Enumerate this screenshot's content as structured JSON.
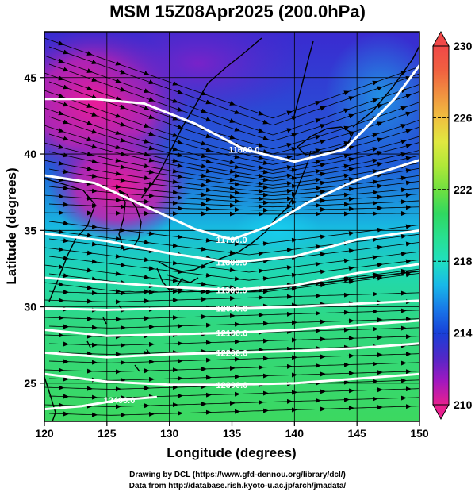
{
  "title": "MSM 15Z08Apr2025 (200.0hPa)",
  "map": {
    "xlabel": "Longitude (degrees)",
    "ylabel": "Latitude  (degrees)",
    "x_ticks": [
      "120",
      "125",
      "130",
      "135",
      "140",
      "145",
      "150"
    ],
    "y_ticks": [
      "25",
      "30",
      "35",
      "40",
      "45"
    ],
    "xlim": [
      120,
      150
    ],
    "ylim": [
      22.5,
      48
    ]
  },
  "colorbar": {
    "ticks": [
      "210",
      "214",
      "218",
      "222",
      "226",
      "230"
    ],
    "range": [
      210,
      230
    ],
    "colors": [
      "#e8208f",
      "#a018c0",
      "#5028c8",
      "#1840d8",
      "#1878e8",
      "#18b8e8",
      "#20e0c0",
      "#28e090",
      "#30d860",
      "#70e040",
      "#b0e838",
      "#e0e840",
      "#f0c040",
      "#f09040",
      "#f06040",
      "#f04848"
    ]
  },
  "contours": [
    {
      "label": "11600.0",
      "points": [
        [
          120,
          43.6
        ],
        [
          124,
          43.6
        ],
        [
          128,
          43.3
        ],
        [
          132,
          42.0
        ],
        [
          136,
          40.3
        ],
        [
          140,
          39.5
        ],
        [
          144,
          40.3
        ],
        [
          148,
          43.6
        ],
        [
          150,
          45.8
        ]
      ]
    },
    {
      "label": "11700.0",
      "points": [
        [
          120,
          38.6
        ],
        [
          124,
          38.1
        ],
        [
          128,
          36.6
        ],
        [
          132,
          35.1
        ],
        [
          135,
          34.4
        ],
        [
          138,
          35.3
        ],
        [
          141,
          36.8
        ],
        [
          145,
          38.3
        ],
        [
          150,
          39.6
        ]
      ]
    },
    {
      "label": "11800.0",
      "points": [
        [
          120,
          34.8
        ],
        [
          125,
          34.3
        ],
        [
          130,
          33.5
        ],
        [
          135,
          32.9
        ],
        [
          140,
          33.3
        ],
        [
          145,
          34.4
        ],
        [
          150,
          35.0
        ]
      ]
    },
    {
      "label": "11900.0",
      "points": [
        [
          120,
          31.9
        ],
        [
          125,
          31.6
        ],
        [
          130,
          31.3
        ],
        [
          135,
          31.1
        ],
        [
          140,
          31.4
        ],
        [
          145,
          32.2
        ],
        [
          150,
          32.8
        ]
      ]
    },
    {
      "label": "12000.0",
      "points": [
        [
          120,
          29.9
        ],
        [
          125,
          29.8
        ],
        [
          130,
          29.9
        ],
        [
          135,
          29.9
        ],
        [
          140,
          30.0
        ],
        [
          145,
          30.2
        ],
        [
          150,
          30.4
        ]
      ]
    },
    {
      "label": "12100.0",
      "points": [
        [
          120,
          28.5
        ],
        [
          125,
          28.1
        ],
        [
          130,
          28.2
        ],
        [
          135,
          28.3
        ],
        [
          140,
          28.5
        ],
        [
          145,
          28.8
        ],
        [
          150,
          29.1
        ]
      ]
    },
    {
      "label": "12200.0",
      "points": [
        [
          120,
          27.0
        ],
        [
          125,
          26.7
        ],
        [
          130,
          26.9
        ],
        [
          135,
          27.0
        ],
        [
          140,
          27.1
        ],
        [
          145,
          27.3
        ],
        [
          150,
          27.6
        ]
      ]
    },
    {
      "label": "12300.0",
      "points": [
        [
          120,
          25.6
        ],
        [
          125,
          25.1
        ],
        [
          130,
          24.9
        ],
        [
          135,
          24.9
        ],
        [
          140,
          25.0
        ],
        [
          145,
          25.3
        ],
        [
          150,
          25.6
        ]
      ]
    },
    {
      "label": "12400.0",
      "points": [
        [
          120,
          23.3
        ],
        [
          123,
          23.5
        ],
        [
          126,
          23.9
        ],
        [
          129,
          24.1
        ]
      ]
    }
  ],
  "credits": {
    "line1": "Drawing by DCL (https://www.gfd-dennou.org/library/dcl/)",
    "line2": "Data from http://database.rish.kyoto-u.ac.jp/arch/jmadata/"
  }
}
